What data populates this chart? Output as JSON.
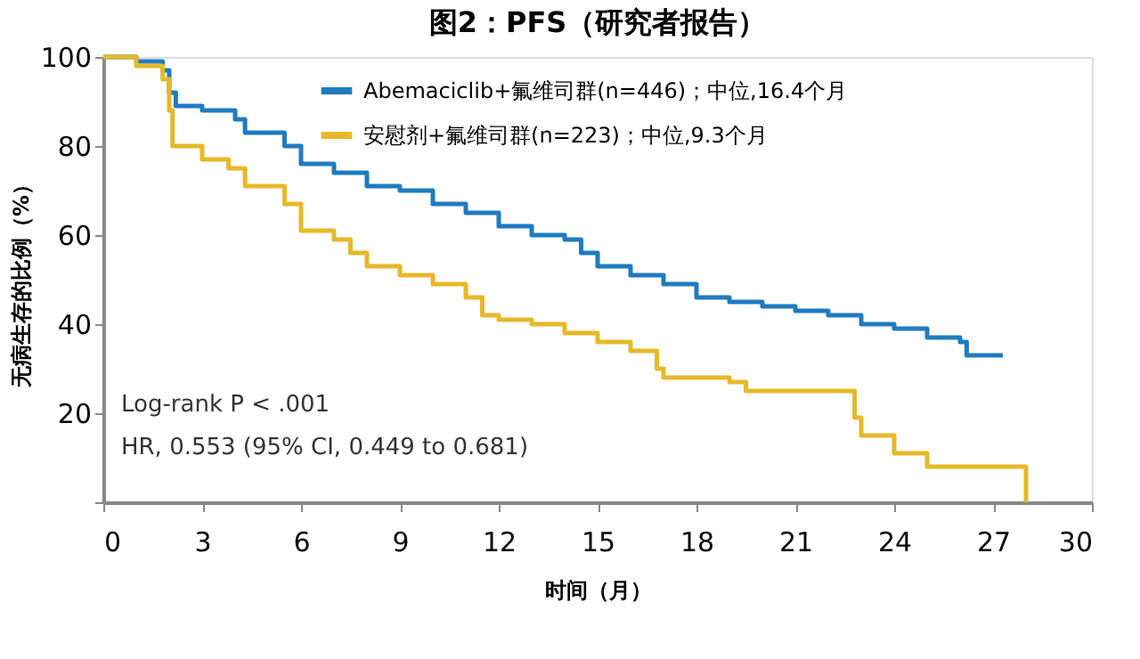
{
  "chart_data": {
    "type": "step",
    "title": "图2：PFS（研究者报告）",
    "xlabel": "时间（月）",
    "ylabel": "无病生存的比例（%）",
    "xlim": [
      0,
      30
    ],
    "xticks": [
      0,
      3,
      6,
      9,
      12,
      15,
      18,
      21,
      24,
      27,
      30
    ],
    "ylim": [
      0,
      100
    ],
    "yticks": [
      {
        "value": 0,
        "label": null
      },
      20,
      40,
      60,
      80,
      100
    ],
    "grid": false,
    "legend": "top",
    "marker": "none",
    "line_style": "solid",
    "annotations": [
      "Log-rank P < .001",
      "HR, 0.553 (95% CI, 0.449 to 0.681)"
    ],
    "series": [
      {
        "name": "Abemaciclib+氟维司群(n=446)；中位,16.4个月",
        "color": "#1f7bc0",
        "x": [
          0,
          1,
          1.8,
          2.0,
          2.2,
          3,
          4,
          4.3,
          5.5,
          6,
          7,
          8,
          9,
          10,
          11,
          12,
          13,
          14,
          14.5,
          15,
          16,
          17,
          18,
          19,
          20,
          21,
          22,
          23,
          24,
          25,
          26,
          26.2,
          27.3
        ],
        "values": [
          100,
          99,
          97,
          92,
          89,
          88,
          86,
          83,
          80,
          76,
          74,
          71,
          70,
          67,
          65,
          62,
          60,
          59,
          56,
          53,
          51,
          49,
          46,
          45,
          44,
          43,
          42,
          40,
          39,
          37,
          36,
          33,
          33
        ]
      },
      {
        "name": "安慰剂+氟维司群(n=223)；中位,9.3个月",
        "color": "#e6b82a",
        "x": [
          0,
          1,
          1.8,
          2.0,
          2.1,
          3,
          3.8,
          4.3,
          5.5,
          6,
          7,
          7.5,
          8,
          9,
          10,
          11,
          11.5,
          12,
          13,
          14,
          15,
          16,
          16.8,
          17,
          19,
          19.5,
          22.5,
          22.8,
          23,
          24,
          25,
          28,
          28
        ],
        "values": [
          100,
          98,
          95,
          88,
          80,
          77,
          75,
          71,
          67,
          61,
          59,
          56,
          53,
          51,
          49,
          46,
          42,
          41,
          40,
          38,
          36,
          34,
          30,
          28,
          27,
          25,
          25,
          19,
          15,
          11,
          8,
          6,
          0
        ]
      }
    ]
  }
}
